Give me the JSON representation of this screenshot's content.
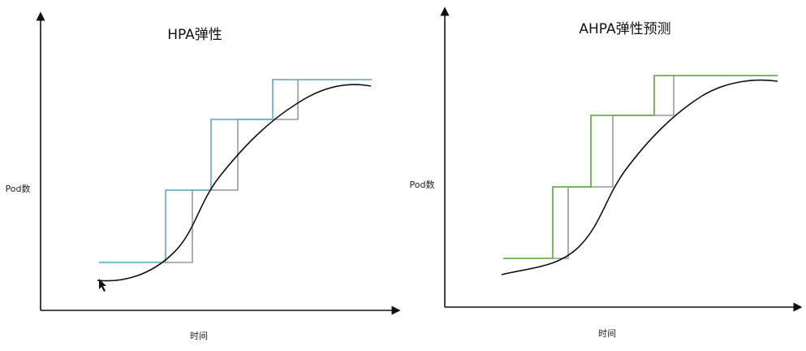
{
  "panels": [
    {
      "title": "HPA弹性",
      "y_label": "Pod数",
      "x_label": "时间"
    },
    {
      "title": "AHPA弹性预测",
      "y_label": "Pod数",
      "x_label": "时间"
    }
  ]
}
